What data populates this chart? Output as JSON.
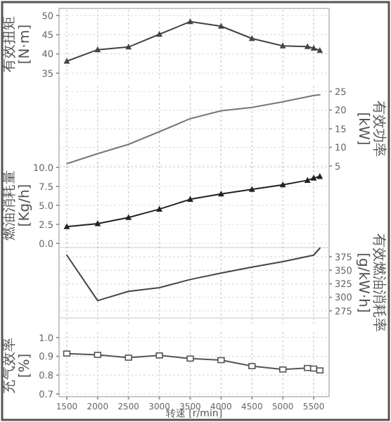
{
  "chart_data": [
    {
      "type": "line",
      "ylabel": "有效扭矩 [N·m]",
      "x": [
        1500,
        2000,
        2500,
        3000,
        3500,
        4000,
        4500,
        5000,
        5400,
        5500,
        5600
      ],
      "xlim": [
        1375,
        5750
      ],
      "xticks": [
        1500,
        2000,
        2500,
        3000,
        3500,
        4000,
        4500,
        5000,
        5500
      ],
      "ylim": [
        35,
        50
      ],
      "yticks": [
        35,
        40,
        45,
        50
      ],
      "grid": true,
      "tick_labels": "y",
      "marker": "triangle",
      "series": [
        {
          "color": "#444444",
          "values": [
            38.1,
            41.1,
            41.8,
            45.1,
            48.4,
            47.2,
            44.0,
            42.1,
            41.9,
            41.5,
            40.9
          ]
        }
      ]
    },
    {
      "type": "line",
      "y2label": "有效功率 [kW]",
      "x": [
        1500,
        2000,
        2500,
        3000,
        3500,
        4000,
        4500,
        5000,
        5500,
        5600
      ],
      "xlim": [
        1375,
        5750
      ],
      "xticks": [
        1500,
        2000,
        2500,
        3000,
        3500,
        4000,
        4500,
        5000,
        5500
      ],
      "y2lim": [
        5,
        25
      ],
      "y2ticks": [
        5,
        10,
        15,
        20,
        25
      ],
      "grid": true,
      "tick_labels": "y",
      "series": [
        {
          "color": "#777777",
          "axis": "y2",
          "values": [
            5.6,
            8.3,
            10.8,
            14.2,
            17.7,
            19.8,
            20.7,
            22.2,
            23.9,
            24.1
          ]
        }
      ]
    },
    {
      "type": "line",
      "ylabel": "燃油消耗量 [Kg/h]",
      "x": [
        1500,
        2000,
        2500,
        3000,
        3500,
        4000,
        4500,
        5000,
        5400,
        5500,
        5600
      ],
      "xlim": [
        1375,
        5750
      ],
      "xticks": [
        1500,
        2000,
        2500,
        3000,
        3500,
        4000,
        4500,
        5000,
        5500
      ],
      "ylim": [
        0,
        10
      ],
      "yticks": [
        {
          "value": 0,
          "label": "0.0"
        },
        {
          "value": 2.5,
          "label": "2.5"
        },
        {
          "value": 5,
          "label": "5.0"
        },
        {
          "value": 7.5,
          "label": "7.5"
        },
        {
          "value": 10,
          "label": "10.0"
        }
      ],
      "grid": true,
      "tick_labels": "y",
      "marker": "triangle",
      "series": [
        {
          "color": "#222222",
          "values": [
            2.2,
            2.6,
            3.4,
            4.5,
            5.8,
            6.5,
            7.1,
            7.7,
            8.3,
            8.6,
            8.8
          ]
        }
      ]
    },
    {
      "type": "line",
      "y2label": "有效燃油消耗率 [g/kW·h]",
      "x": [
        1500,
        2000,
        2500,
        3000,
        3500,
        4000,
        4500,
        5000,
        5500,
        5600
      ],
      "xlim": [
        1375,
        5750
      ],
      "xticks": [
        1500,
        2000,
        2500,
        3000,
        3500,
        4000,
        4500,
        5000,
        5500
      ],
      "y2lim": [
        262,
        392
      ],
      "y2ticks": [
        275,
        300,
        325,
        350,
        375
      ],
      "grid": true,
      "tick_labels": "y",
      "series": [
        {
          "color": "#444444",
          "axis": "y2",
          "values": [
            378,
            294,
            311,
            318,
            333,
            345,
            356,
            366,
            378,
            391
          ]
        }
      ]
    },
    {
      "type": "line",
      "xlabel": "转速 [r/min]",
      "ylabel": "充气效率 [%]",
      "x": [
        1500,
        2000,
        2500,
        3000,
        3500,
        4000,
        4500,
        5000,
        5400,
        5500,
        5600
      ],
      "xlim": [
        1375,
        5750
      ],
      "xticks": [
        1500,
        2000,
        2500,
        3000,
        3500,
        4000,
        4500,
        5000,
        5500
      ],
      "ylim": [
        0.7,
        1.0
      ],
      "yticks": [
        {
          "value": 0.7,
          "label": "0.7"
        },
        {
          "value": 0.8,
          "label": "0.8"
        },
        {
          "value": 0.9,
          "label": "0.9"
        },
        {
          "value": 1.0,
          "label": "1.0"
        }
      ],
      "grid": true,
      "marker": "square",
      "series": [
        {
          "color": "#555555",
          "values": [
            0.915,
            0.908,
            0.893,
            0.905,
            0.888,
            0.88,
            0.848,
            0.83,
            0.838,
            0.835,
            0.825
          ]
        }
      ]
    }
  ]
}
